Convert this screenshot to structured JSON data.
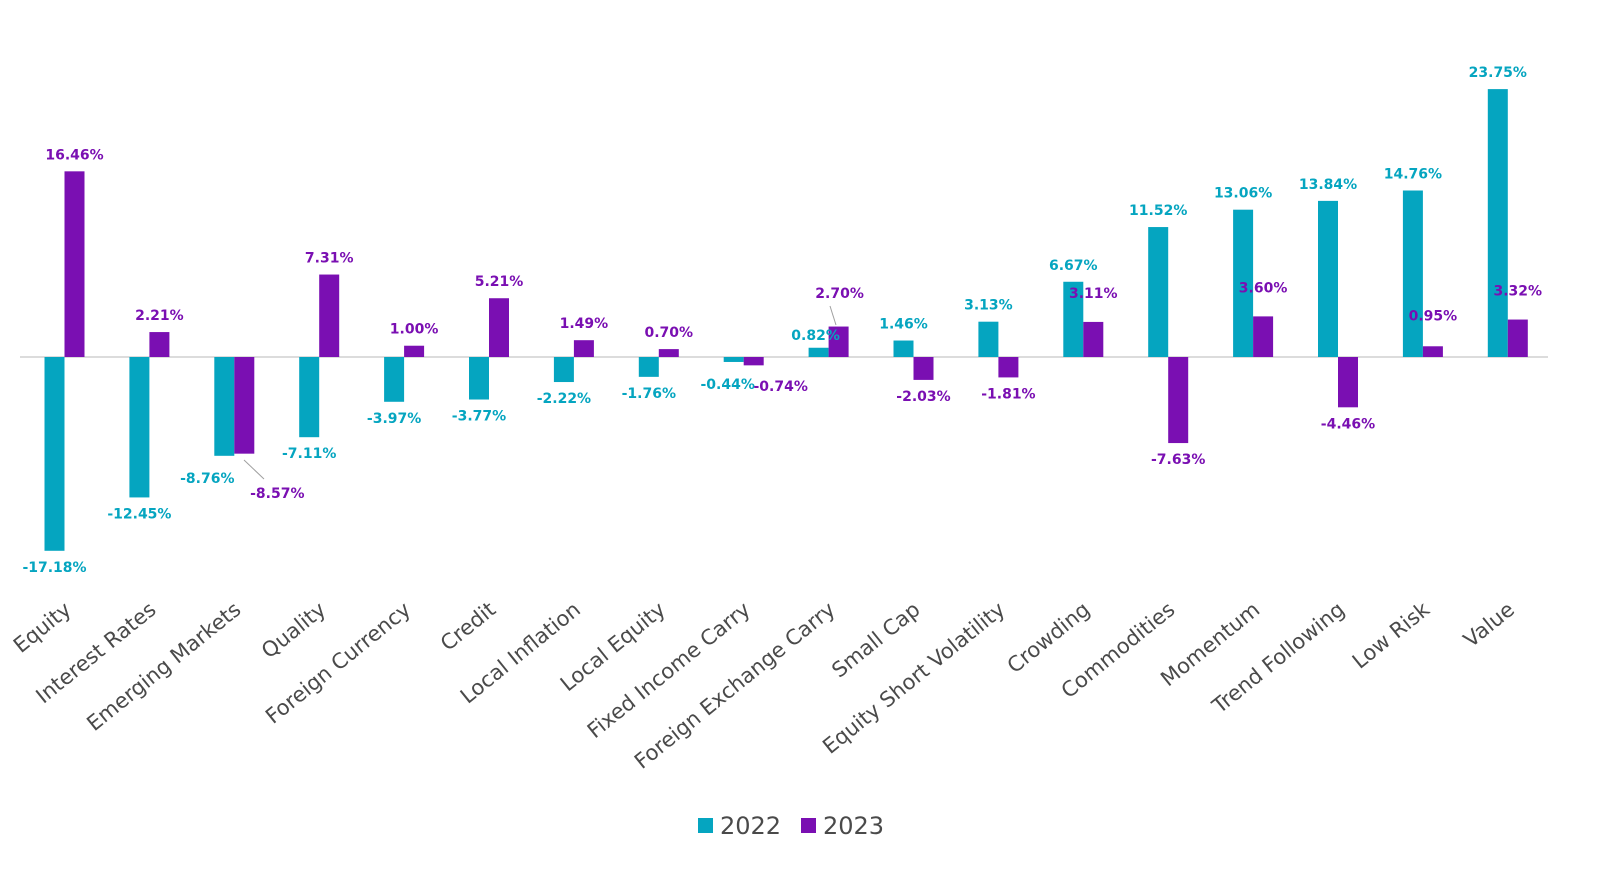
{
  "chart_data": {
    "type": "bar",
    "title": "",
    "xlabel": "",
    "ylabel": "",
    "ylim": [
      -20,
      26
    ],
    "grid": false,
    "legend_position": "bottom-center",
    "categories": [
      "Equity",
      "Interest Rates",
      "Emerging Markets",
      "Quality",
      "Foreign Currency",
      "Credit",
      "Local Inflation",
      "Local Equity",
      "Fixed Income Carry",
      "Foreign Exchange Carry",
      "Small Cap",
      "Equity Short Volatility",
      "Crowding",
      "Commodities",
      "Momentum",
      "Trend Following",
      "Low Risk",
      "Value"
    ],
    "series": [
      {
        "name": "2022",
        "color": "#05A5C0",
        "values": [
          -17.18,
          -12.45,
          -8.76,
          -7.11,
          -3.97,
          -3.77,
          -2.22,
          -1.76,
          -0.44,
          0.82,
          1.46,
          3.13,
          6.67,
          11.52,
          13.06,
          13.84,
          14.76,
          23.75
        ],
        "labels": [
          "-17.18%",
          "-12.45%",
          "-8.76%",
          "-7.11%",
          "-3.97%",
          "-3.77%",
          "-2.22%",
          "-1.76%",
          "-0.44%",
          "0.82%",
          "1.46%",
          "3.13%",
          "6.67%",
          "11.52%",
          "13.06%",
          "13.84%",
          "14.76%",
          "23.75%"
        ]
      },
      {
        "name": "2023",
        "color": "#7A0FB2",
        "values": [
          16.46,
          2.21,
          -8.57,
          7.31,
          1.0,
          5.21,
          1.49,
          0.7,
          -0.74,
          2.7,
          -2.03,
          -1.81,
          3.11,
          -7.63,
          3.6,
          -4.46,
          0.95,
          3.32
        ],
        "labels": [
          "16.46%",
          "2.21%",
          "-8.57%",
          "7.31%",
          "1.00%",
          "5.21%",
          "1.49%",
          "0.70%",
          "-0.74%",
          "2.70%",
          "-2.03%",
          "-1.81%",
          "3.11%",
          "-7.63%",
          "3.60%",
          "-4.46%",
          "0.95%",
          "3.32%"
        ]
      }
    ]
  },
  "legend": {
    "items": [
      {
        "label": "2022",
        "color": "#05A5C0"
      },
      {
        "label": "2023",
        "color": "#7A0FB2"
      }
    ]
  },
  "colors": {
    "axis": "#d0d0d0",
    "text": "#4a4a4a"
  }
}
